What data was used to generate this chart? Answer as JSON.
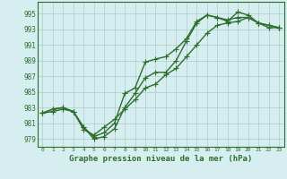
{
  "xlabel": "Graphe pression niveau de la mer (hPa)",
  "background_color": "#d6eef0",
  "grid_color": "#aacccc",
  "line_color": "#2d6e2d",
  "xlim": [
    -0.5,
    23.5
  ],
  "ylim": [
    978.0,
    996.5
  ],
  "yticks": [
    979,
    981,
    983,
    985,
    987,
    989,
    991,
    993,
    995
  ],
  "xticks": [
    0,
    1,
    2,
    3,
    4,
    5,
    6,
    7,
    8,
    9,
    10,
    11,
    12,
    13,
    14,
    15,
    16,
    17,
    18,
    19,
    20,
    21,
    22,
    23
  ],
  "line1_x": [
    0,
    1,
    2,
    3,
    4,
    5,
    6,
    7,
    8,
    9,
    10,
    11,
    12,
    13,
    14,
    15,
    16,
    17,
    18,
    19,
    20,
    21,
    22,
    23
  ],
  "line1_y": [
    982.3,
    982.8,
    983.0,
    982.5,
    980.5,
    979.0,
    979.3,
    980.3,
    983.0,
    984.8,
    986.8,
    987.5,
    987.5,
    989.0,
    991.5,
    993.8,
    994.8,
    994.5,
    994.0,
    995.2,
    994.8,
    993.8,
    993.5,
    993.2
  ],
  "line2_x": [
    0,
    1,
    2,
    3,
    4,
    5,
    6,
    7,
    8,
    9,
    10,
    11,
    12,
    13,
    14,
    15,
    16,
    17,
    18,
    19,
    20,
    21,
    22,
    23
  ],
  "line2_y": [
    982.3,
    982.8,
    983.0,
    982.5,
    980.5,
    979.3,
    979.8,
    981.0,
    984.8,
    985.5,
    988.8,
    989.2,
    989.5,
    990.5,
    991.8,
    994.0,
    994.8,
    994.5,
    994.2,
    994.5,
    994.5,
    993.8,
    993.2,
    993.2
  ],
  "line3_x": [
    0,
    1,
    2,
    3,
    4,
    5,
    6,
    7,
    8,
    9,
    10,
    11,
    12,
    13,
    14,
    15,
    16,
    17,
    18,
    19,
    20,
    21,
    22,
    23
  ],
  "line3_y": [
    982.3,
    982.5,
    982.8,
    982.5,
    980.2,
    979.5,
    980.5,
    981.5,
    982.8,
    984.0,
    985.5,
    986.0,
    987.2,
    988.0,
    989.5,
    991.0,
    992.5,
    993.5,
    993.8,
    994.0,
    994.5,
    993.8,
    993.5,
    993.2
  ],
  "marker": "+",
  "markersize": 4,
  "linewidth": 1.0
}
